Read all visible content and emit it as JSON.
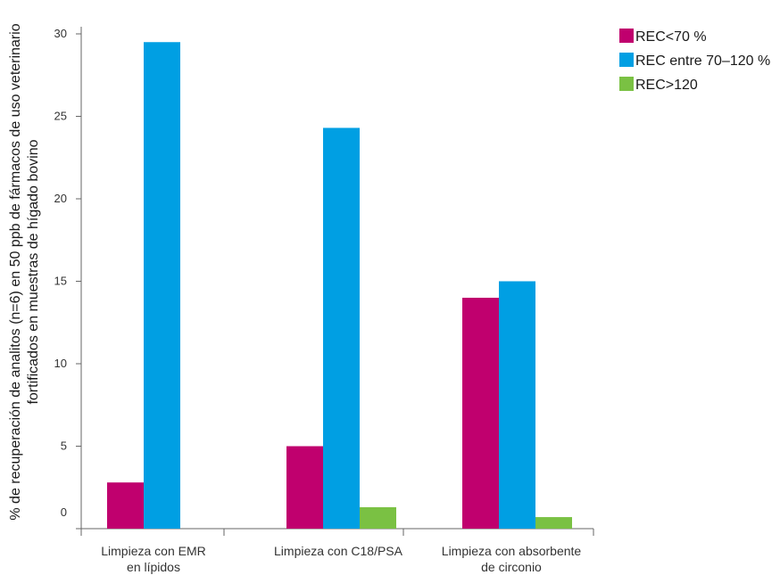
{
  "chart_data": {
    "type": "bar",
    "title": "",
    "ylabel_lines": [
      "% de recuperación de analitos (n=6) en 50 ppb de fármacos de uso veterinario",
      "fortificados en muestras de hígado bovino"
    ],
    "xlabel": "",
    "categories": [
      [
        "Limpieza con EMR",
        "en lípidos"
      ],
      [
        "Limpieza con C18/PSA"
      ],
      [
        "Limpieza con absorbente",
        "de circonio"
      ]
    ],
    "series": [
      {
        "name": "REC<70 %",
        "color": "#c0006e",
        "values": [
          2.8,
          5,
          14
        ]
      },
      {
        "name": "REC entre 70–120 %",
        "color": "#009fe3",
        "values": [
          29.5,
          24.3,
          15
        ]
      },
      {
        "name": "REC>120",
        "color": "#7ac143",
        "values": [
          0,
          1.3,
          0.7
        ]
      }
    ],
    "ylim": [
      0,
      30
    ],
    "yticks": [
      0,
      5,
      10,
      15,
      20,
      25,
      30
    ],
    "grid": false,
    "legend_position": "top-right"
  }
}
